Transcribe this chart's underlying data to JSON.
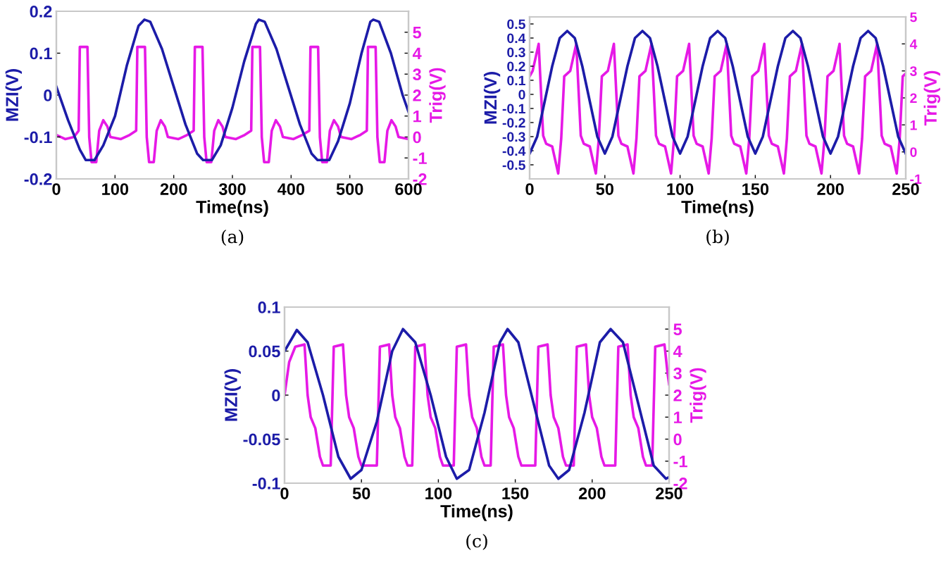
{
  "chart_data": [
    {
      "type": "line",
      "xlabel": "Time(ns)",
      "ylabel": "MZI(V)",
      "y2label": "Trig(V)",
      "annotations": [
        "(a)"
      ],
      "grid": false,
      "legend": false,
      "xlim": [
        0,
        600
      ],
      "xticks": [
        0,
        100,
        200,
        300,
        400,
        500,
        600
      ],
      "ylim": [
        -0.2,
        0.2
      ],
      "yticks": [
        -0.2,
        -0.1,
        0,
        0.1,
        0.2
      ],
      "y2lim": [
        -2,
        6
      ],
      "y2ticks": [
        -2,
        -1,
        0,
        1,
        2,
        3,
        4,
        5
      ],
      "series": [
        {
          "color": "#1c1ca8",
          "x": [
            0,
            20,
            40,
            50,
            65,
            80,
            100,
            120,
            140,
            150,
            160,
            180,
            200,
            220,
            240,
            250,
            265,
            280,
            300,
            320,
            340,
            345,
            355,
            375,
            395,
            415,
            435,
            445,
            465,
            480,
            500,
            520,
            535,
            540,
            550,
            570,
            590,
            600
          ],
          "values": [
            0.02,
            -0.06,
            -0.13,
            -0.155,
            -0.155,
            -0.12,
            -0.05,
            0.07,
            0.165,
            0.18,
            0.175,
            0.11,
            0.02,
            -0.07,
            -0.14,
            -0.155,
            -0.155,
            -0.12,
            -0.03,
            0.08,
            0.17,
            0.18,
            0.175,
            0.11,
            0.02,
            -0.07,
            -0.14,
            -0.155,
            -0.155,
            -0.11,
            -0.02,
            0.1,
            0.175,
            0.18,
            0.175,
            0.1,
            0.0,
            -0.04
          ]
        },
        {
          "color": "#e619e6",
          "axis": "y2",
          "x": [
            0,
            15,
            30,
            38,
            40,
            53,
            56,
            60,
            68,
            73,
            80,
            87,
            92,
            110,
            125,
            136,
            138,
            151,
            154,
            158,
            166,
            171,
            178,
            185,
            190,
            208,
            223,
            234,
            236,
            249,
            252,
            256,
            264,
            269,
            276,
            283,
            288,
            306,
            321,
            332,
            334,
            347,
            350,
            354,
            362,
            367,
            374,
            381,
            386,
            404,
            419,
            431,
            433,
            446,
            449,
            453,
            461,
            466,
            473,
            480,
            485,
            503,
            518,
            529,
            531,
            544,
            547,
            551,
            559,
            564,
            571,
            578,
            583,
            600
          ],
          "values": [
            0.1,
            -0.1,
            0.0,
            0.3,
            4.3,
            4.3,
            0.0,
            -1.2,
            -1.2,
            0.3,
            0.8,
            0.5,
            0.0,
            -0.1,
            0.1,
            0.3,
            4.3,
            4.3,
            0.0,
            -1.2,
            -1.2,
            0.3,
            0.8,
            0.5,
            0.0,
            -0.1,
            0.1,
            0.3,
            4.3,
            4.3,
            0.0,
            -1.2,
            -1.2,
            0.3,
            0.8,
            0.5,
            0.0,
            -0.1,
            0.1,
            0.3,
            4.3,
            4.3,
            0.0,
            -1.2,
            -1.2,
            0.3,
            0.8,
            0.5,
            0.0,
            -0.1,
            0.1,
            0.3,
            4.3,
            4.3,
            0.0,
            -1.2,
            -1.2,
            0.3,
            0.8,
            0.5,
            0.0,
            -0.1,
            0.1,
            0.3,
            4.3,
            4.3,
            0.0,
            -1.2,
            -1.2,
            0.3,
            0.8,
            0.5,
            0.0,
            -0.1
          ]
        }
      ]
    },
    {
      "type": "line",
      "xlabel": "Time(ns)",
      "ylabel": "MZI(V)",
      "y2label": "Trig(V)",
      "annotations": [
        "(b)"
      ],
      "grid": false,
      "legend": false,
      "xlim": [
        0,
        250
      ],
      "xticks": [
        0,
        50,
        100,
        150,
        200,
        250
      ],
      "ylim": [
        -0.6,
        0.55
      ],
      "yticks": [
        -0.5,
        -0.4,
        -0.3,
        -0.2,
        -0.1,
        0,
        0.1,
        0.2,
        0.3,
        0.4,
        0.5
      ],
      "y2lim": [
        -1,
        5
      ],
      "y2ticks": [
        -1,
        0,
        1,
        2,
        3,
        4,
        5
      ],
      "series": [
        {
          "color": "#1c1ca8",
          "x": [
            0,
            5,
            10,
            15,
            20,
            25,
            30,
            35,
            40,
            45,
            50,
            55,
            60,
            65,
            70,
            75,
            80,
            85,
            90,
            95,
            100,
            105,
            110,
            115,
            120,
            125,
            130,
            135,
            140,
            145,
            150,
            155,
            160,
            165,
            170,
            175,
            180,
            185,
            190,
            195,
            200,
            205,
            210,
            215,
            220,
            225,
            230,
            235,
            240,
            245,
            250
          ],
          "values": [
            -0.42,
            -0.3,
            -0.05,
            0.2,
            0.4,
            0.45,
            0.4,
            0.2,
            -0.05,
            -0.3,
            -0.42,
            -0.3,
            -0.05,
            0.2,
            0.4,
            0.45,
            0.4,
            0.2,
            -0.05,
            -0.3,
            -0.42,
            -0.3,
            -0.05,
            0.2,
            0.4,
            0.45,
            0.4,
            0.2,
            -0.05,
            -0.3,
            -0.42,
            -0.3,
            -0.05,
            0.2,
            0.4,
            0.45,
            0.4,
            0.2,
            -0.05,
            -0.3,
            -0.42,
            -0.3,
            -0.05,
            0.2,
            0.4,
            0.45,
            0.4,
            0.2,
            -0.05,
            -0.3,
            -0.42
          ]
        },
        {
          "color": "#e619e6",
          "axis": "y2",
          "x": [
            0,
            2,
            6,
            9,
            11,
            15,
            19,
            21,
            23,
            27,
            31,
            34,
            36,
            40,
            44,
            46,
            48,
            52,
            56,
            59,
            61,
            65,
            69,
            71,
            73,
            77,
            81,
            84,
            86,
            90,
            94,
            96,
            98,
            102,
            106,
            109,
            111,
            115,
            119,
            121,
            123,
            127,
            131,
            134,
            136,
            140,
            144,
            146,
            148,
            152,
            156,
            159,
            161,
            165,
            169,
            171,
            173,
            177,
            181,
            184,
            186,
            190,
            194,
            196,
            198,
            202,
            206,
            209,
            211,
            215,
            219,
            221,
            223,
            227,
            231,
            234,
            236,
            240,
            244,
            246,
            248,
            250
          ],
          "values": [
            2.8,
            3.0,
            4.0,
            0.6,
            0.3,
            0.2,
            -0.8,
            0.5,
            2.8,
            3.0,
            4.0,
            0.6,
            0.3,
            0.2,
            -0.8,
            0.5,
            2.8,
            3.0,
            4.0,
            0.6,
            0.3,
            0.2,
            -0.8,
            0.5,
            2.8,
            3.0,
            4.0,
            0.6,
            0.3,
            0.2,
            -0.8,
            0.5,
            2.8,
            3.0,
            4.0,
            0.6,
            0.3,
            0.2,
            -0.8,
            0.5,
            2.8,
            3.0,
            4.0,
            0.6,
            0.3,
            0.2,
            -0.8,
            0.5,
            2.8,
            3.0,
            4.0,
            0.6,
            0.3,
            0.2,
            -0.8,
            0.5,
            2.8,
            3.0,
            4.0,
            0.6,
            0.3,
            0.2,
            -0.8,
            0.5,
            2.8,
            3.0,
            4.0,
            0.6,
            0.3,
            0.2,
            -0.8,
            0.5,
            2.8,
            3.0,
            4.0,
            0.6,
            0.3,
            0.2,
            -0.8,
            0.5,
            2.8,
            2.9
          ]
        }
      ]
    },
    {
      "type": "line",
      "xlabel": "Time(ns)",
      "ylabel": "MZI(V)",
      "y2label": "Trig(V)",
      "annotations": [
        "(c)"
      ],
      "grid": false,
      "legend": false,
      "xlim": [
        0,
        250
      ],
      "xticks": [
        0,
        50,
        100,
        150,
        200,
        250
      ],
      "ylim": [
        -0.1,
        0.1
      ],
      "yticks": [
        -0.1,
        -0.05,
        0,
        0.05,
        0.1
      ],
      "y2lim": [
        -2,
        6
      ],
      "y2ticks": [
        -2,
        -1,
        0,
        1,
        2,
        3,
        4,
        5
      ],
      "series": [
        {
          "color": "#1c1ca8",
          "x": [
            0,
            8,
            15,
            25,
            35,
            43,
            50,
            60,
            70,
            77,
            85,
            95,
            105,
            112,
            120,
            130,
            140,
            145,
            152,
            162,
            172,
            178,
            185,
            195,
            205,
            212,
            220,
            230,
            240,
            248,
            250
          ],
          "values": [
            0.05,
            0.074,
            0.06,
            0.0,
            -0.07,
            -0.095,
            -0.085,
            -0.03,
            0.05,
            0.075,
            0.06,
            0.0,
            -0.07,
            -0.095,
            -0.085,
            -0.02,
            0.06,
            0.075,
            0.06,
            -0.01,
            -0.08,
            -0.095,
            -0.085,
            -0.02,
            0.06,
            0.075,
            0.06,
            -0.01,
            -0.08,
            -0.095,
            -0.093
          ]
        },
        {
          "color": "#e619e6",
          "axis": "y2",
          "x": [
            0,
            3,
            7,
            13,
            15,
            17,
            20,
            23,
            25,
            30,
            32,
            38,
            40,
            42,
            45,
            48,
            50,
            60,
            62,
            68,
            70,
            72,
            75,
            78,
            80,
            83,
            85,
            91,
            93,
            95,
            98,
            101,
            103,
            110,
            112,
            118,
            120,
            122,
            125,
            128,
            130,
            134,
            136,
            142,
            144,
            146,
            149,
            152,
            154,
            163,
            165,
            171,
            173,
            175,
            178,
            181,
            183,
            188,
            190,
            196,
            198,
            200,
            203,
            206,
            208,
            215,
            217,
            223,
            225,
            227,
            230,
            233,
            235,
            239,
            241,
            247,
            249,
            250
          ],
          "values": [
            2.0,
            3.5,
            4.2,
            4.3,
            2.0,
            1.0,
            0.5,
            -0.8,
            -1.2,
            -1.2,
            4.2,
            4.3,
            2.0,
            1.0,
            0.5,
            -0.8,
            -1.2,
            -1.2,
            4.2,
            4.3,
            2.0,
            1.0,
            0.5,
            -0.8,
            -1.2,
            -1.2,
            4.2,
            4.3,
            2.0,
            1.0,
            0.5,
            -0.8,
            -1.2,
            -1.2,
            4.2,
            4.3,
            2.0,
            1.0,
            0.5,
            -0.8,
            -1.2,
            -1.2,
            4.2,
            4.3,
            2.0,
            1.0,
            0.5,
            -0.8,
            -1.2,
            -1.2,
            4.2,
            4.3,
            2.0,
            1.0,
            0.5,
            -0.8,
            -1.2,
            -1.2,
            4.2,
            4.3,
            2.0,
            1.0,
            0.5,
            -0.8,
            -1.2,
            -1.2,
            4.2,
            4.3,
            2.0,
            1.0,
            0.5,
            -0.8,
            -1.2,
            -1.2,
            4.2,
            4.3,
            3.0,
            2.5
          ]
        }
      ]
    }
  ]
}
